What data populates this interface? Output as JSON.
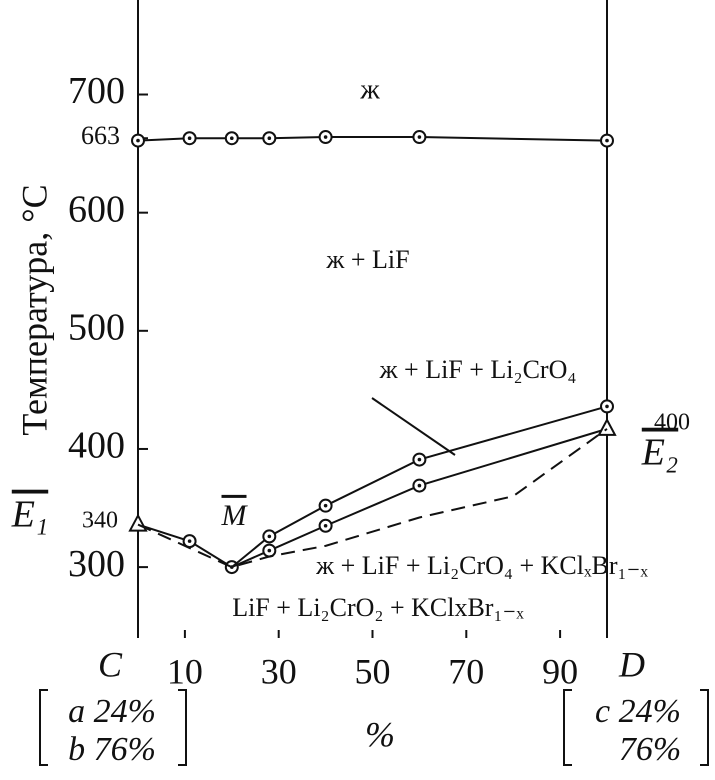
{
  "chart_data": {
    "type": "line",
    "ylabel": "Температура, °C",
    "xlim": [
      0,
      100
    ],
    "ylim": [
      240,
      780
    ],
    "xticks": [
      10,
      30,
      50,
      70,
      90
    ],
    "yticks": [
      300,
      400,
      500,
      600,
      663,
      700
    ],
    "series": [
      {
        "x": [
          0,
          11,
          20,
          28,
          40,
          60,
          100
        ],
        "values": [
          661,
          663,
          663,
          663,
          664,
          664,
          661
        ],
        "style": "solid",
        "markers": [
          "circle",
          "circle",
          "circle",
          "circle",
          "circle",
          "circle",
          "circle"
        ]
      },
      {
        "x": [
          0,
          11,
          20
        ],
        "values": [
          336,
          322,
          300
        ],
        "style": "solid",
        "markers": [
          "triangle",
          "circle",
          "circle"
        ]
      },
      {
        "x": [
          20,
          28,
          40,
          60,
          100
        ],
        "values": [
          300,
          326,
          352,
          391,
          436
        ],
        "style": "solid",
        "markers": [
          "none",
          "circle",
          "circle",
          "circle",
          "circle"
        ]
      },
      {
        "x": [
          20,
          28,
          40,
          60,
          100
        ],
        "values": [
          300,
          314,
          335,
          369,
          417
        ],
        "style": "solid",
        "markers": [
          "none",
          "circle",
          "circle",
          "circle",
          "triangle"
        ]
      },
      {
        "x": [
          0,
          20,
          28,
          40,
          60,
          80,
          100
        ],
        "values": [
          336,
          300,
          309,
          318,
          342,
          360,
          417
        ],
        "style": "dashed",
        "markers": [
          "none",
          "none",
          "none",
          "none",
          "none",
          "none",
          "none"
        ]
      }
    ],
    "annotations": [
      "ж",
      "ж + LiF",
      "ж + LiF + Li₂CrO₄",
      "ж + LiF + Li₂CrO₄ + KClₓBr₁₋ₓ",
      "LiF + Li₂CrO₂ + KClxBr₁₋ₓ",
      "E₁",
      "340",
      "M",
      "E₂",
      "400",
      "C",
      "D",
      "%",
      "a 24%",
      "b 76%",
      "c 24%",
      "76%"
    ]
  }
}
